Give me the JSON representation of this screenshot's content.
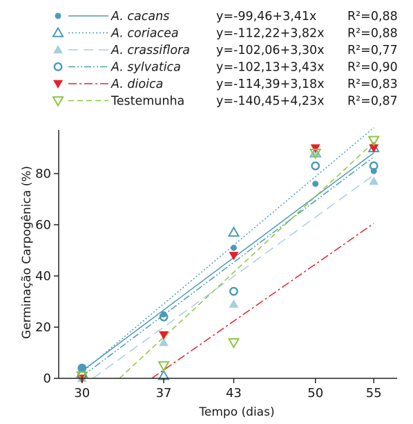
{
  "chart_data": {
    "type": "scatter",
    "xlabel": "Tempo (dias)",
    "ylabel": "Germinação Carpogênica (%)",
    "x_ticks": [
      30,
      37,
      43,
      50,
      55
    ],
    "y_ticks": [
      0,
      20,
      40,
      60,
      80
    ],
    "xlim": [
      28,
      57
    ],
    "ylim": [
      0,
      97
    ],
    "grid": false,
    "legend_position": "top",
    "series": [
      {
        "name": "A. cacans",
        "italic": true,
        "equation": "y=-99,46+3,41x",
        "r2": "R²=0,88",
        "intercept": -99.46,
        "slope": 3.41,
        "color": "#4a9bb8",
        "marker": "circle-filled",
        "line": "solid",
        "points": [
          [
            30,
            4
          ],
          [
            37,
            25
          ],
          [
            43,
            51
          ],
          [
            50,
            76
          ],
          [
            55,
            81
          ]
        ]
      },
      {
        "name": "A. coriacea",
        "italic": true,
        "equation": "y=-112,22+3,82x",
        "r2": "R²=0,88",
        "intercept": -112.22,
        "slope": 3.82,
        "color": "#4a9bb8",
        "marker": "triangle-up-open",
        "line": "dotted",
        "points": [
          [
            30,
            2
          ],
          [
            37,
            1
          ],
          [
            43,
            57
          ],
          [
            50,
            88
          ],
          [
            55,
            90
          ]
        ]
      },
      {
        "name": "A. crassiflora",
        "italic": true,
        "equation": "y=-102,06+3,30x",
        "r2": "R²=0,77",
        "intercept": -102.06,
        "slope": 3.3,
        "color": "#a8cfe0",
        "marker": "triangle-up-filled",
        "line": "longdash",
        "points": [
          [
            30,
            0
          ],
          [
            37,
            14
          ],
          [
            43,
            29
          ],
          [
            50,
            88
          ],
          [
            55,
            77
          ]
        ]
      },
      {
        "name": "A. sylvatica",
        "italic": true,
        "equation": "y=-102,13+3,43x",
        "r2": "R²=0,90",
        "intercept": -102.13,
        "slope": 3.43,
        "color": "#4a9bb8",
        "marker": "circle-open",
        "line": "dashdotdot",
        "points": [
          [
            30,
            4
          ],
          [
            37,
            24
          ],
          [
            43,
            34
          ],
          [
            50,
            83
          ],
          [
            55,
            83
          ]
        ]
      },
      {
        "name": "A. dioica",
        "italic": true,
        "equation": "y=-114,39+3,18x",
        "r2": "R²=0,83",
        "intercept": -114.39,
        "slope": 3.18,
        "color": "#e8202a",
        "marker": "triangle-down-filled",
        "line": "dashdot",
        "points": [
          [
            30,
            0
          ],
          [
            37,
            17
          ],
          [
            43,
            48
          ],
          [
            50,
            90
          ],
          [
            55,
            90
          ]
        ]
      },
      {
        "name": "Testemunha",
        "italic": false,
        "equation": "y=-140,45+4,23x",
        "r2": "R²=0,87",
        "intercept": -140.45,
        "slope": 4.23,
        "color": "#8cc63f",
        "marker": "triangle-down-open",
        "line": "dashed",
        "points": [
          [
            30,
            1
          ],
          [
            37,
            5
          ],
          [
            43,
            14
          ],
          [
            50,
            88
          ],
          [
            55,
            93
          ]
        ]
      }
    ]
  }
}
